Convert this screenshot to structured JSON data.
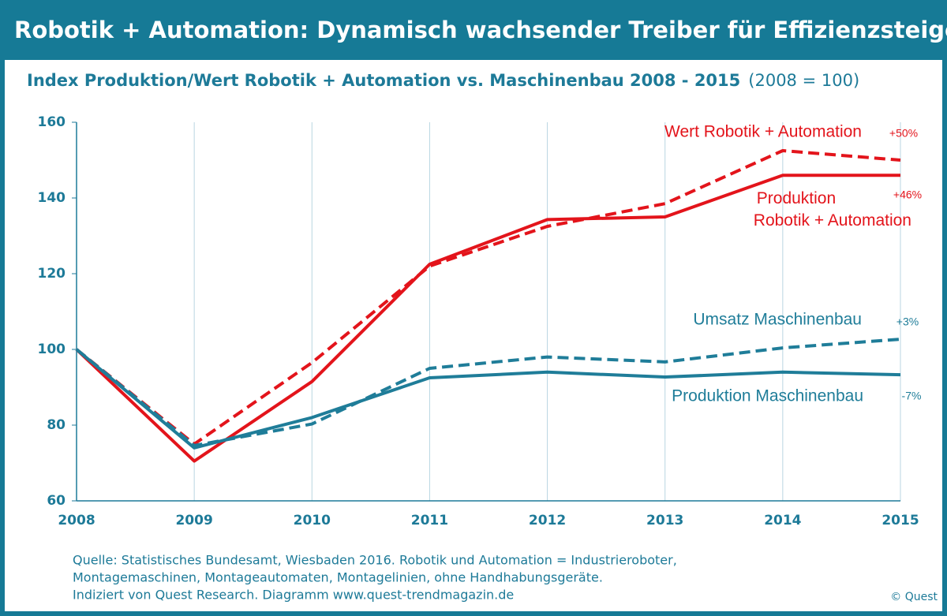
{
  "chart_data": {
    "type": "line",
    "title": "Robotik + Automation: Dynamisch wachsender Treiber für Effizienzsteigerung",
    "subtitle": "Index Produktion/Wert Robotik + Automation vs. Maschinenbau 2008 - 2015",
    "subtitle_note": "(2008 = 100)",
    "x": [
      2008,
      2009,
      2010,
      2011,
      2012,
      2013,
      2014,
      2015
    ],
    "xlim": [
      2008,
      2015
    ],
    "xticks": [
      2008,
      2009,
      2010,
      2011,
      2012,
      2013,
      2014,
      2015
    ],
    "ylim": [
      60,
      160
    ],
    "yticks": [
      60,
      80,
      100,
      120,
      140,
      160
    ],
    "grid": "x",
    "series": [
      {
        "name": "Wert Robotik + Automation",
        "annotation": "+50%",
        "color": "#e3141b",
        "style": "dashed",
        "values": [
          100,
          75,
          96.5,
          122,
          132.5,
          138.5,
          152.5,
          150
        ]
      },
      {
        "name": "Produktion Robotik + Automation",
        "annotation": "+46%",
        "color": "#e3141b",
        "style": "solid",
        "values": [
          100,
          70.5,
          91.5,
          122.5,
          134.3,
          135,
          146,
          146
        ]
      },
      {
        "name": "Umsatz Maschinenbau",
        "annotation": "+3%",
        "color": "#1f7d99",
        "style": "dashed",
        "values": [
          100,
          74.6,
          80.3,
          95,
          98,
          96.7,
          100.4,
          102.7
        ]
      },
      {
        "name": "Produktion Maschinenbau",
        "annotation": "-7%",
        "color": "#1f7d99",
        "style": "solid",
        "values": [
          100,
          74,
          82,
          92.5,
          94,
          92.7,
          94,
          93.3
        ]
      }
    ],
    "source": [
      "Quelle: Statistisches Bundesamt, Wiesbaden 2016. Robotik und Automation = Industrieroboter,",
      "Montagemaschinen, Montageautomaten, Montagelinien, ohne Handhabungsgeräte.",
      "Indiziert von Quest Research.  Diagramm www.quest-trendmagazin.de"
    ],
    "credit": "© Quest"
  }
}
